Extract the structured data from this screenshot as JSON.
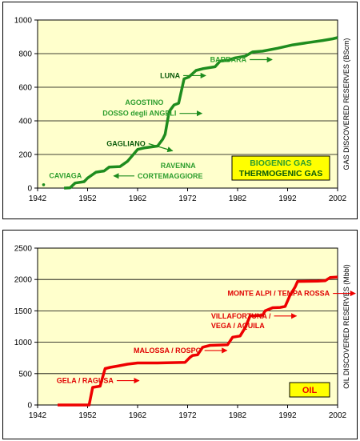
{
  "chart_data": [
    {
      "type": "line",
      "ylabel": "GAS DISCOVERED RESERVES  (BScm)",
      "x_ticks": [
        "1942",
        "1952",
        "1962",
        "1972",
        "1982",
        "1992",
        "2002"
      ],
      "y_ticks": [
        "0",
        "200",
        "400",
        "600",
        "800",
        "1000"
      ],
      "xlim": [
        1942,
        2002
      ],
      "ylim": [
        0,
        1000
      ],
      "grid": true,
      "series": [
        {
          "color": "#1e8c1e",
          "x": [
            1947.3,
            1948.5,
            1949.5,
            1951.3,
            1952,
            1953.7,
            1955.3,
            1956.3,
            1958.5,
            1960,
            1962,
            1963.5,
            1966,
            1967,
            1967.5,
            1968.3,
            1969.3,
            1970.2,
            1971.3,
            1972.2,
            1973.7,
            1975,
            1977.5,
            1978.5,
            1980,
            1981.5,
            1983.5,
            1985,
            1987,
            1990,
            1993,
            1996,
            1999,
            2001,
            2002
          ],
          "y": [
            0,
            2,
            30,
            38,
            60,
            95,
            102,
            125,
            128,
            160,
            230,
            240,
            250,
            290,
            320,
            455,
            495,
            505,
            650,
            660,
            700,
            710,
            722,
            755,
            760,
            775,
            785,
            810,
            815,
            832,
            852,
            865,
            878,
            888,
            895
          ]
        }
      ],
      "points": [
        {
          "x": 1943.2,
          "y": 20
        }
      ],
      "annotations": [
        {
          "label": "BARBARA",
          "x": 1976.5,
          "y": 750,
          "arrow": true,
          "shade": "light"
        },
        {
          "label": "LUNA",
          "x": 1966.5,
          "y": 655,
          "arrow": true,
          "shade": "dark"
        },
        {
          "label": "AGOSTINO",
          "x": 1959.5,
          "y": 495,
          "arrow": false,
          "shade": "light"
        },
        {
          "label": "DOSSO degli ANGELI",
          "x": 1955,
          "y": 430,
          "arrow": true,
          "shade": "light"
        },
        {
          "label": "GAGLIANO",
          "x": 1955.8,
          "y": 250,
          "arrow": true,
          "shade": "dark"
        },
        {
          "label": "RAVENNA",
          "x": 1966.6,
          "y": 120,
          "arrow": false,
          "shade": "light"
        },
        {
          "label": "CAVIAGA",
          "x": 1944.3,
          "y": 60,
          "arrow": false,
          "shade": "light"
        },
        {
          "label": "CORTEMAGGIORE",
          "x": 1962,
          "y": 58,
          "arrow": true,
          "shade": "light"
        }
      ],
      "legend": {
        "items": [
          "BIOGENIC GAS",
          "THERMOGENIC GAS"
        ],
        "colors": [
          "#2e9e2e",
          "#0a5a0a"
        ],
        "position": "bottom-right",
        "background": "#ffff00"
      },
      "plot_background": "#ffffcc"
    },
    {
      "type": "line",
      "ylabel": "OIL DISCOVERED RESERVES  (Mbbl)",
      "x_ticks": [
        "1942",
        "1952",
        "1962",
        "1972",
        "1982",
        "1992",
        "2002"
      ],
      "y_ticks": [
        "0",
        "500",
        "1000",
        "1500",
        "2000",
        "2500"
      ],
      "xlim": [
        1942,
        2002
      ],
      "ylim": [
        0,
        2500
      ],
      "grid": true,
      "series": [
        {
          "color": "#ee0000",
          "x": [
            1946,
            1952.3,
            1953,
            1954.5,
            1955.5,
            1956.5,
            1958,
            1960,
            1962,
            1966,
            1971.5,
            1972.5,
            1973,
            1974,
            1975,
            1976.5,
            1980,
            1981,
            1982.5,
            1983.5,
            1984.5,
            1987,
            1987.5,
            1989,
            1990.5,
            1991.5,
            1992.5,
            1993.5,
            1994,
            1998,
            1999.5,
            2000.5,
            2002
          ],
          "y": [
            0,
            0,
            280,
            300,
            580,
            600,
            620,
            650,
            670,
            670,
            680,
            760,
            790,
            800,
            920,
            950,
            960,
            1080,
            1100,
            1230,
            1420,
            1430,
            1500,
            1550,
            1555,
            1570,
            1750,
            1880,
            1970,
            1975,
            1980,
            2030,
            2040
          ]
        }
      ],
      "annotations": [
        {
          "label": "MONTE ALPI / TEMPA ROSSA",
          "x": 1980,
          "y": 1740,
          "arrow": true
        },
        {
          "label": "VILLAFORTUNA /",
          "x": 1976.7,
          "y": 1380,
          "arrow": true
        },
        {
          "label": "VEGA / AQUILA",
          "x": 1976.7,
          "y": 1225,
          "arrow": false
        },
        {
          "label": "MALOSSA / ROSPO",
          "x": 1961.2,
          "y": 830,
          "arrow": true
        },
        {
          "label": "GELA / RAGUSA",
          "x": 1945.8,
          "y": 350,
          "arrow": true
        }
      ],
      "legend": {
        "items": [
          "OIL"
        ],
        "colors": [
          "#ee0000"
        ],
        "position": "bottom-right",
        "background": "#ffff00"
      },
      "plot_background": "#ffffcc"
    }
  ]
}
